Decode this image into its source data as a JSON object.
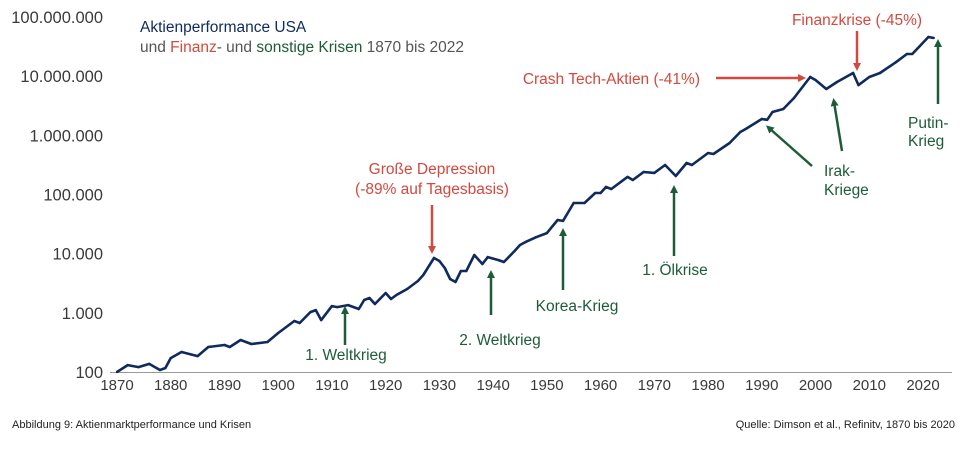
{
  "chart_data": {
    "type": "line",
    "title_line1": "Aktienperformance USA",
    "title_line2": {
      "part1": "und ",
      "part2": "Finanz",
      "part3": "- und ",
      "part4": "sonstige Krisen",
      "part5": " 1870 bis 2022"
    },
    "yscale": "log",
    "ylim": [
      100,
      100000000
    ],
    "xlim": [
      1870,
      2022
    ],
    "y_ticks": [
      {
        "value": 100,
        "label": "100"
      },
      {
        "value": 1000,
        "label": "1.000"
      },
      {
        "value": 10000,
        "label": "10.000"
      },
      {
        "value": 100000,
        "label": "100.000"
      },
      {
        "value": 1000000,
        "label": "1.000.000"
      },
      {
        "value": 10000000,
        "label": "10.000.000"
      },
      {
        "value": 100000000,
        "label": "100.000.000"
      }
    ],
    "x_ticks": [
      1870,
      1880,
      1890,
      1900,
      1910,
      1920,
      1930,
      1940,
      1950,
      1960,
      1970,
      1980,
      1990,
      2000,
      2010,
      2020
    ],
    "series": [
      {
        "name": "Aktienperformance USA",
        "color": "#0f2a5e",
        "x": [
          1870,
          1872,
          1874,
          1876,
          1878,
          1879,
          1880,
          1882,
          1885,
          1887,
          1890,
          1891,
          1893,
          1895,
          1898,
          1900,
          1903,
          1904,
          1906,
          1907,
          1908,
          1910,
          1911,
          1913,
          1915,
          1916,
          1917,
          1918,
          1920,
          1921,
          1922,
          1924,
          1926,
          1927,
          1929,
          1930,
          1931,
          1932,
          1933,
          1934,
          1935,
          1936.5,
          1938,
          1939,
          1941,
          1942,
          1944,
          1945,
          1946,
          1948,
          1950,
          1952,
          1953,
          1955,
          1957,
          1959,
          1960,
          1961,
          1962,
          1965,
          1966,
          1968,
          1970,
          1972,
          1974,
          1976,
          1977,
          1980,
          1981,
          1984,
          1986,
          1987,
          1990,
          1991,
          1992,
          1994,
          1996,
          1999,
          2000,
          2002,
          2004,
          2007,
          2008,
          2010,
          2012,
          2015,
          2017,
          2018,
          2021,
          2022
        ],
        "values": [
          100,
          131,
          121,
          137,
          108,
          117,
          172,
          218,
          186,
          265,
          286,
          265,
          347,
          297,
          321,
          456,
          728,
          673,
          1030,
          1110,
          755,
          1300,
          1250,
          1350,
          1160,
          1650,
          1780,
          1410,
          2160,
          1710,
          2000,
          2530,
          3450,
          4360,
          8450,
          7520,
          5730,
          3730,
          3320,
          5090,
          5090,
          9480,
          6680,
          8750,
          7780,
          7220,
          11100,
          14000,
          15700,
          19000,
          22300,
          37100,
          35800,
          71800,
          71800,
          106000,
          106000,
          134000,
          124000,
          198000,
          176000,
          240000,
          232000,
          315000,
          205000,
          340000,
          315000,
          502000,
          484000,
          741000,
          1140000,
          1280000,
          1890000,
          1830000,
          2480000,
          2790000,
          4280000,
          9690000,
          8620000,
          6070000,
          7970000,
          11300000,
          7050000,
          9690000,
          11300000,
          17300000,
          23700000,
          23700000,
          45900000,
          44200000
        ]
      }
    ],
    "annotations": {
      "depression_line1": "Große Depression",
      "depression_line2": "(-89% auf Tagesbasis)",
      "ww1": "1. Weltkrieg",
      "ww2": "2. Weltkrieg",
      "korea": "Korea-Krieg",
      "oil": "1. Ölkrise",
      "tech": "Crash Tech-Aktien (-41%)",
      "finance": "Finanzkrise (-45%)",
      "iraq_line1": "Irak-",
      "iraq_line2": "Kriege",
      "putin_line1": "Putin-",
      "putin_line2": "Krieg"
    },
    "colors": {
      "line": "#0f2a5e",
      "finance_crisis": "#d2493e",
      "other_crisis": "#1d5c38"
    }
  },
  "footer": {
    "caption": "Abbildung 9: Aktienmarktperformance und Krisen",
    "source": "Quelle: Dimson et al., Refinitv, 1870 bis 2020"
  }
}
